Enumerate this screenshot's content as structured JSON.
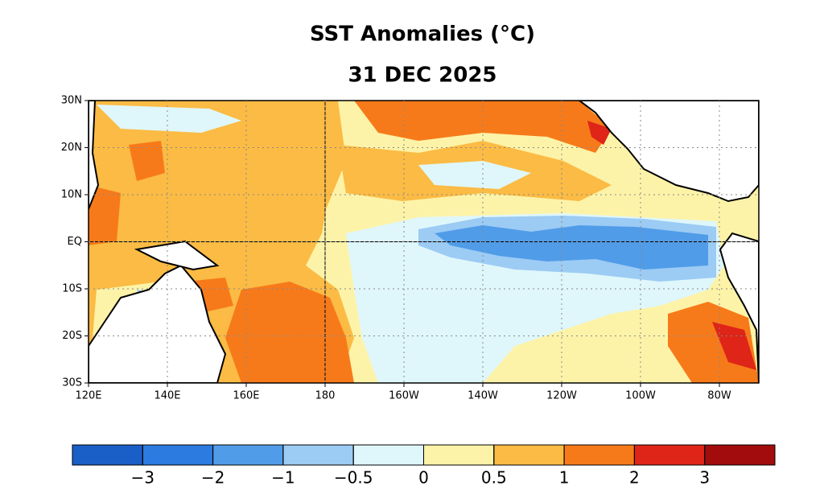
{
  "title": "SST Anomalies (°C)",
  "subtitle": "31 DEC 2025",
  "map": {
    "lon_labels": [
      "120E",
      "140E",
      "160E",
      "180",
      "160W",
      "140W",
      "120W",
      "100W",
      "80W"
    ],
    "lat_labels": [
      "30N",
      "20N",
      "10N",
      "EQ",
      "10S",
      "20S",
      "30S"
    ]
  },
  "colorbar": {
    "colors": [
      "#1a5fc8",
      "#2b7be0",
      "#509ce8",
      "#9ccbf4",
      "#dff7fb",
      "#fdf3a8",
      "#fbbb44",
      "#f77a1a",
      "#df2418",
      "#a20c0c"
    ],
    "ticks": [
      {
        "value": -3,
        "label": "−3"
      },
      {
        "value": -2,
        "label": "−2"
      },
      {
        "value": -1,
        "label": "−1"
      },
      {
        "value": -0.5,
        "label": "−0.5"
      },
      0,
      0.5,
      1,
      2,
      3
    ]
  }
}
